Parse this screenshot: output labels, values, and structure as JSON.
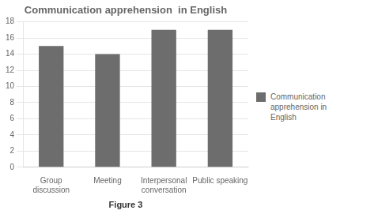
{
  "chart_data": {
    "type": "bar",
    "title": "Communication apprehension  in English",
    "subtitle": "Figure 3",
    "categories": [
      "Group\ndiscussion",
      "Meeting",
      "Interpersonal\nconversation",
      "Public speaking"
    ],
    "series": [
      {
        "name": "Communication apprehension in\nEnglish",
        "color": "#6d6d6d",
        "values": [
          15,
          14,
          17,
          17
        ]
      }
    ],
    "ylim": [
      0,
      18
    ],
    "yticks": [
      0,
      2,
      4,
      6,
      8,
      10,
      12,
      14,
      16,
      18
    ],
    "grid": true,
    "legend": "right"
  }
}
